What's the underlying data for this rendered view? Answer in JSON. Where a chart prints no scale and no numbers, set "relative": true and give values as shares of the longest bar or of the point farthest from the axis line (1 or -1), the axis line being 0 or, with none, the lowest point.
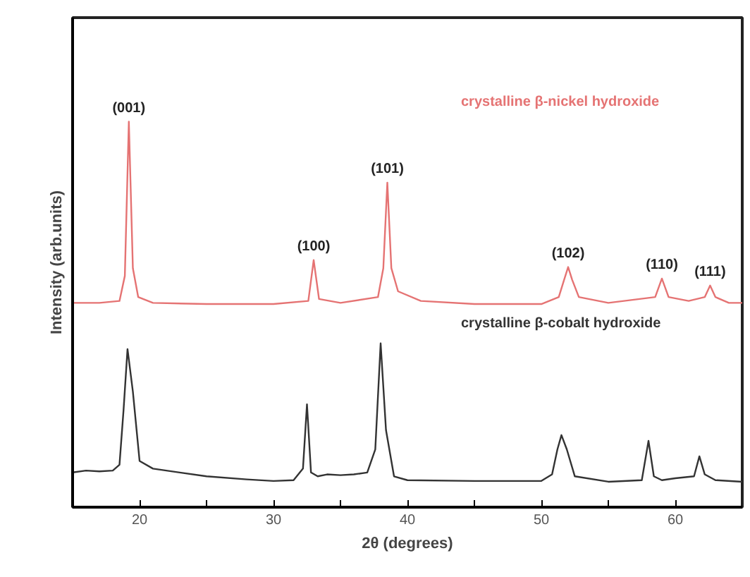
{
  "chart_data": {
    "type": "line",
    "relative": true,
    "xlabel": "2θ (degrees)",
    "ylabel": "Intensity (arb.units)",
    "xlim": [
      15,
      65
    ],
    "xticks": [
      20,
      {
        "value": 25,
        "label": null
      },
      30,
      {
        "value": 35,
        "label": null
      },
      40,
      {
        "value": 45,
        "label": null
      },
      50,
      {
        "value": 55,
        "label": null
      },
      60
    ],
    "grid": false,
    "series": [
      {
        "name": "crystalline β-nickel hydroxide",
        "color": "#e57373",
        "x": [
          15,
          17,
          18.5,
          18.9,
          19.2,
          19.5,
          19.9,
          21,
          25,
          30,
          32.6,
          33.0,
          33.4,
          35,
          37.8,
          38.2,
          38.5,
          38.8,
          39.3,
          41,
          45,
          50,
          51.3,
          51.7,
          52.0,
          52.3,
          52.8,
          55,
          58.5,
          59.0,
          59.5,
          61,
          62.2,
          62.6,
          63.0,
          64,
          65
        ],
        "values": [
          0.53,
          0.53,
          0.535,
          0.6,
          1.0,
          0.62,
          0.545,
          0.53,
          0.527,
          0.527,
          0.535,
          0.641,
          0.54,
          0.53,
          0.545,
          0.62,
          0.842,
          0.62,
          0.56,
          0.535,
          0.527,
          0.527,
          0.545,
          0.59,
          0.623,
          0.59,
          0.545,
          0.53,
          0.545,
          0.593,
          0.545,
          0.535,
          0.545,
          0.575,
          0.545,
          0.53,
          0.53
        ]
      },
      {
        "name": "crystalline β-cobalt hydroxide",
        "color": "#333333",
        "x": [
          15,
          16,
          17,
          18,
          18.5,
          18.8,
          19.1,
          19.5,
          20,
          21,
          22,
          23,
          25,
          28,
          30,
          31.5,
          32.2,
          32.5,
          32.8,
          33.3,
          34,
          35,
          36,
          37,
          37.6,
          38.0,
          38.4,
          39,
          40,
          45,
          50,
          50.8,
          51.2,
          51.5,
          51.9,
          52.5,
          55,
          57.5,
          58.0,
          58.4,
          59,
          60,
          61.4,
          61.8,
          62.2,
          63,
          65
        ],
        "values": [
          0.09,
          0.095,
          0.093,
          0.095,
          0.11,
          0.25,
          0.41,
          0.3,
          0.12,
          0.1,
          0.095,
          0.09,
          0.08,
          0.072,
          0.068,
          0.07,
          0.1,
          0.267,
          0.09,
          0.08,
          0.085,
          0.083,
          0.085,
          0.09,
          0.15,
          0.425,
          0.2,
          0.08,
          0.07,
          0.068,
          0.068,
          0.085,
          0.15,
          0.187,
          0.15,
          0.08,
          0.066,
          0.07,
          0.172,
          0.08,
          0.07,
          0.075,
          0.08,
          0.132,
          0.085,
          0.07,
          0.066
        ]
      }
    ],
    "annotations": [
      {
        "text": "(001)",
        "x": 19.2,
        "y": 1.0
      },
      {
        "text": "(100)",
        "x": 33.0,
        "y": 0.641
      },
      {
        "text": "(101)",
        "x": 38.5,
        "y": 0.842
      },
      {
        "text": "(102)",
        "x": 52.0,
        "y": 0.623
      },
      {
        "text": "(110)",
        "x": 59.0,
        "y": 0.593
      },
      {
        "text": "(111)",
        "x": 62.6,
        "y": 0.575
      }
    ]
  }
}
